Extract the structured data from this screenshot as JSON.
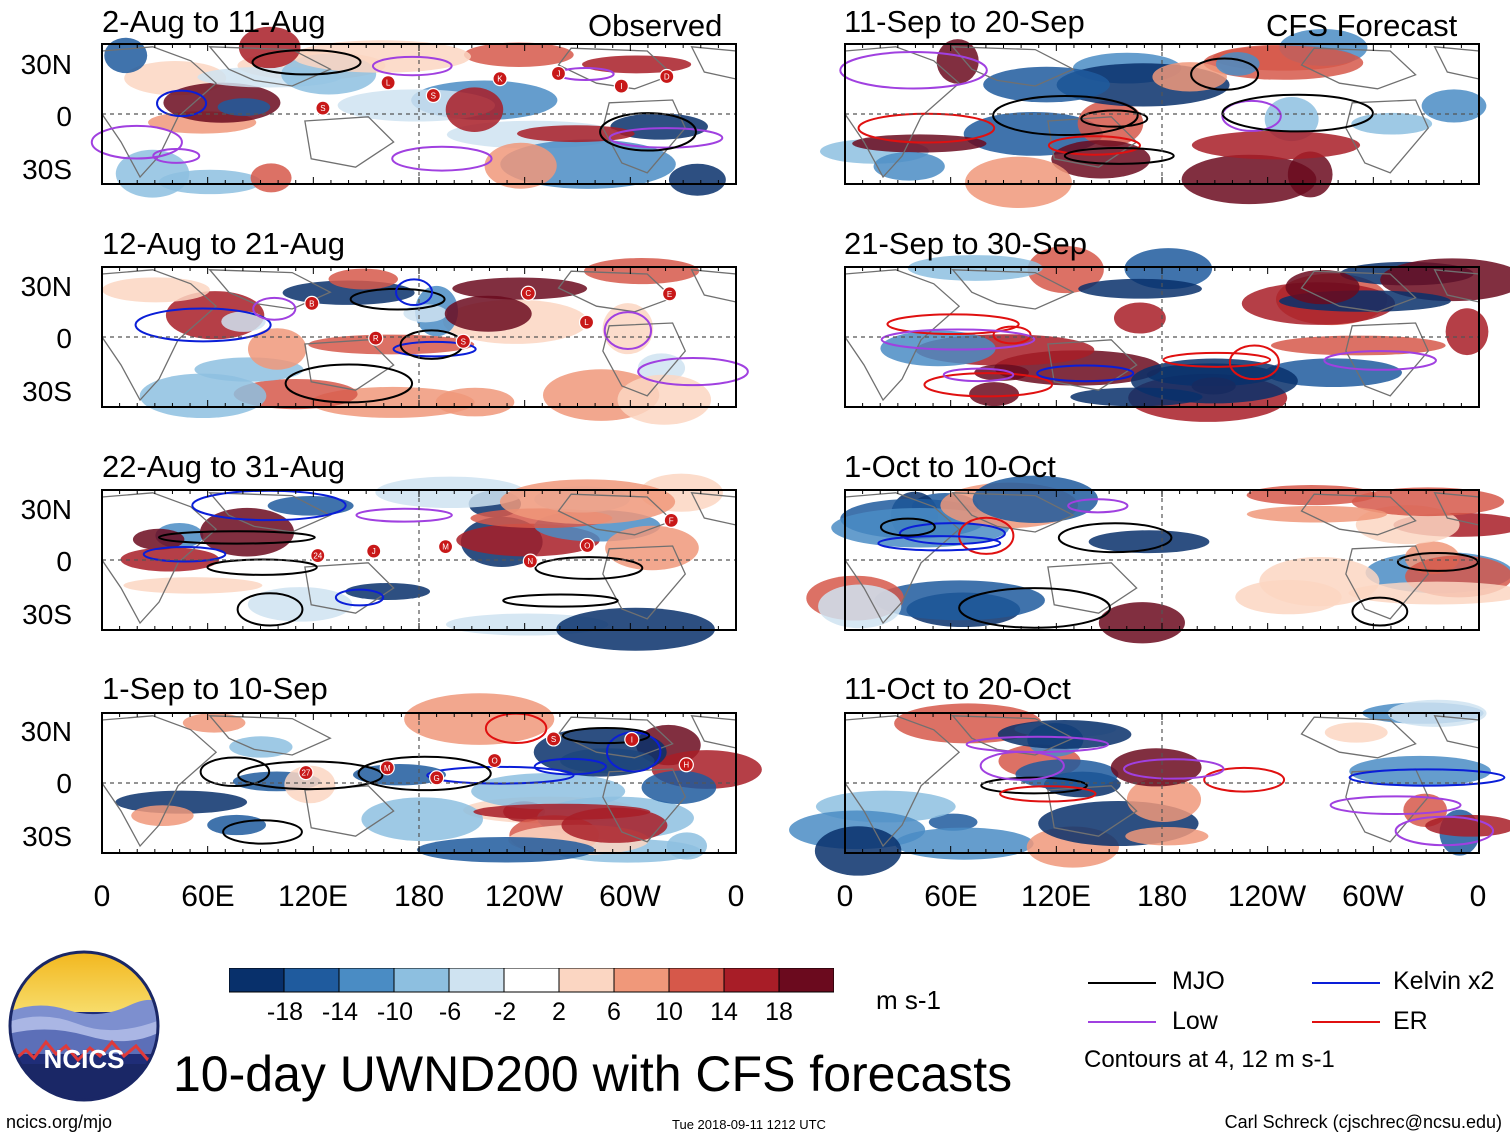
{
  "panels_observed": [
    {
      "period": "2-Aug to 11-Aug",
      "source_label": "Observed"
    },
    {
      "period": "12-Aug to 21-Aug"
    },
    {
      "period": "22-Aug to 31-Aug"
    },
    {
      "period": "1-Sep to 10-Sep"
    }
  ],
  "panels_forecast": [
    {
      "period": "11-Sep to 20-Sep",
      "source_label": "CFS Forecast"
    },
    {
      "period": "21-Sep to 30-Sep"
    },
    {
      "period": "1-Oct to 10-Oct"
    },
    {
      "period": "11-Oct to 20-Oct"
    }
  ],
  "axes": {
    "lat_ticks": [
      "30N",
      "0",
      "30S"
    ],
    "lon_ticks": [
      "0",
      "60E",
      "120E",
      "180",
      "120W",
      "60W",
      "0"
    ]
  },
  "colorbar": {
    "labels": [
      "-18",
      "-14",
      "-10",
      "-6",
      "-2",
      "2",
      "6",
      "10",
      "14",
      "18"
    ],
    "colors": [
      "#08306b",
      "#1f5b9e",
      "#4a8cc4",
      "#8dbfe0",
      "#cfe3f1",
      "#ffffff",
      "#fbd6c2",
      "#f0987a",
      "#d6584a",
      "#a81d27",
      "#6b0a1e"
    ],
    "units": "m s-1"
  },
  "legend": {
    "items": [
      {
        "label": "MJO",
        "color": "#000000"
      },
      {
        "label": "Low",
        "color": "#a040e0"
      },
      {
        "label": "Kelvin x2",
        "color": "#0a1ed8"
      },
      {
        "label": "ER",
        "color": "#e01010"
      }
    ],
    "contours_note": "Contours at 4, 12 m s-1"
  },
  "logo_text": "NCICS",
  "main_title": "10-day UWND200 with CFS forecasts",
  "footer": {
    "url": "ncics.org/mjo",
    "timestamp": "Tue 2018-09-11 1212 UTC",
    "author": "Carl Schreck (cjschrec@ncsu.edu)"
  },
  "chart_data": {
    "type": "heatmap",
    "variable": "200-hPa zonal wind anomaly (10-day mean)",
    "units": "m s-1",
    "x_range": [
      0,
      360
    ],
    "y_range": [
      -40,
      40
    ],
    "contour_levels": [
      4,
      12
    ],
    "shading_levels": [
      -18,
      -14,
      -10,
      -6,
      -2,
      2,
      6,
      10,
      14,
      18
    ],
    "tropical_cyclone_markers": {
      "2-Aug to 11-Aug": [
        "S",
        "L",
        "S",
        "K",
        "J",
        "I",
        "D"
      ],
      "12-Aug to 21-Aug": [
        "B",
        "R",
        "S",
        "C",
        "L",
        "E"
      ],
      "22-Aug to 31-Aug": [
        "24",
        "J",
        "M",
        "N",
        "O",
        "F"
      ],
      "1-Sep to 10-Sep": [
        "27",
        "M",
        "G",
        "O",
        "S",
        "I",
        "H"
      ]
    }
  }
}
